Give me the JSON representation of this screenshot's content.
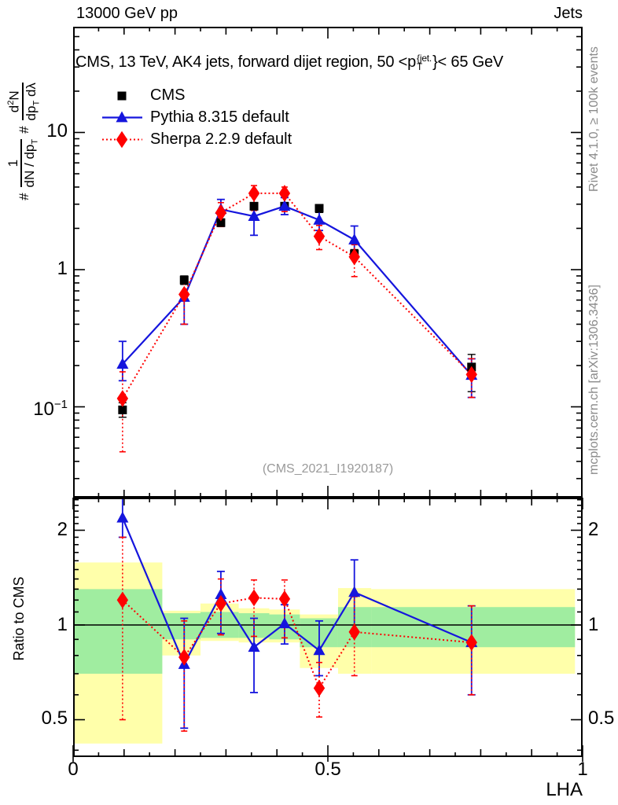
{
  "header": {
    "left": "13000 GeV pp",
    "right": "Jets"
  },
  "title": {
    "text": "CMS, 13 TeV, AK4 jets, forward dijet region, 50 <p",
    "sup": "{jet.",
    "sub": "T",
    "suffix": "}< 65 GeV"
  },
  "ylabel": {
    "hash1": "#",
    "frac1_num": "1",
    "frac1_den": "dN / dp",
    "frac1_den_sub": "T",
    "hash2": "#",
    "frac2_num_base": "d",
    "frac2_num_exp": "2",
    "frac2_num_tail": "N",
    "frac2_den_a": "dp",
    "frac2_den_a_sub": "T",
    "frac2_den_b": " dλ"
  },
  "ratio_ylabel": "Ratio to CMS",
  "xlabel": "LHA",
  "watermark": "(CMS_2021_I1920187)",
  "side_notes": {
    "top": "Rivet 4.1.0, ≥ 100k events",
    "bottom": "mcplots.cern.ch [arXiv:1306.3436]"
  },
  "legend": [
    {
      "label": "CMS",
      "marker": "square",
      "color": "#000000",
      "line": "none"
    },
    {
      "label": "Pythia 8.315 default",
      "marker": "triangle",
      "color": "#1515dd",
      "line": "solid"
    },
    {
      "label": "Sherpa 2.2.9 default",
      "marker": "diamond",
      "color": "#ff0000",
      "line": "dotted"
    }
  ],
  "ticks": {
    "main_y": [
      {
        "text": "10"
      },
      {
        "text": "1"
      },
      {
        "text": "10",
        "sup": "−1"
      }
    ],
    "ratio_y": [
      "2",
      "1",
      "0.5"
    ],
    "x": [
      "0",
      "0.5",
      "1"
    ]
  },
  "colors": {
    "cms": "#000000",
    "pythia": "#1515dd",
    "sherpa": "#ff0000",
    "band_outer": "#ffffaa",
    "band_inner": "#a0eda0",
    "frame": "#000000",
    "note_gray": "#8a8a8a",
    "watermark_gray": "#9a9a9a"
  },
  "chart_data": {
    "type": "scatter",
    "title": "CMS, 13 TeV, AK4 jets, forward dijet region, 50 < pT(jet) < 65 GeV",
    "xlabel": "LHA",
    "ylabel": "1/(dN/dpT) d2N/(dpT dlambda)",
    "xlim": [
      0,
      1
    ],
    "x_values": [
      0.097,
      0.218,
      0.29,
      0.355,
      0.415,
      0.483,
      0.552,
      0.782
    ],
    "main": {
      "ylog": true,
      "ylim": [
        0.0218,
        59
      ],
      "y_ticks_labeled": [
        10,
        1,
        0.1
      ],
      "series": [
        {
          "name": "CMS",
          "y": [
            0.095,
            0.84,
            2.2,
            2.9,
            2.9,
            2.8,
            1.3,
            0.195
          ],
          "err_lo": [
            0.084,
            0.78,
            2.07,
            2.74,
            2.74,
            2.61,
            1.2,
            0.129
          ],
          "err_hi": [
            0.107,
            0.9,
            2.34,
            3.07,
            3.07,
            2.97,
            1.4,
            0.241
          ]
        },
        {
          "name": "Pythia 8.315 default",
          "y": [
            0.205,
            0.63,
            2.75,
            2.45,
            2.9,
            2.3,
            1.65,
            0.17
          ],
          "err_lo": [
            0.155,
            0.4,
            2.07,
            1.78,
            2.52,
            1.93,
            1.23,
            0.117
          ],
          "err_hi": [
            0.3,
            0.67,
            3.25,
            3.05,
            3.35,
            2.88,
            2.08,
            0.224
          ]
        },
        {
          "name": "Sherpa 2.2.9 default",
          "y": [
            0.115,
            0.66,
            2.6,
            3.6,
            3.6,
            1.75,
            1.24,
            0.172
          ],
          "err_lo": [
            0.047,
            0.4,
            2.06,
            2.7,
            2.65,
            1.4,
            0.89,
            0.117
          ],
          "err_hi": [
            0.18,
            0.86,
            3.08,
            4.1,
            4.0,
            2.1,
            1.52,
            0.224
          ]
        }
      ]
    },
    "ratio": {
      "ylog": true,
      "ylim": [
        0.38,
        2.54
      ],
      "reference": 1,
      "y_ticks_labeled": [
        2,
        1,
        0.5
      ],
      "series": [
        {
          "name": "Pythia 8.315 default",
          "y": [
            2.19,
            0.75,
            1.25,
            0.85,
            1.01,
            0.83,
            1.27,
            0.88
          ],
          "err_lo": [
            1.9,
            0.47,
            0.94,
            0.61,
            0.87,
            0.69,
            0.95,
            0.6
          ],
          "err_hi": [
            2.6,
            1.05,
            1.48,
            1.05,
            1.16,
            1.03,
            1.61,
            1.15
          ]
        },
        {
          "name": "Sherpa 2.2.9 default",
          "y": [
            1.2,
            0.79,
            1.17,
            1.22,
            1.21,
            0.63,
            0.95,
            0.88
          ],
          "err_lo": [
            0.5,
            0.46,
            0.93,
            0.92,
            0.91,
            0.51,
            0.69,
            0.6
          ],
          "err_hi": [
            1.9,
            1.03,
            1.4,
            1.39,
            1.39,
            0.76,
            1.23,
            1.15
          ]
        }
      ],
      "bands": {
        "edges": [
          0,
          0.175,
          0.25,
          0.325,
          0.385,
          0.445,
          0.52,
          0.585,
          0.985
        ],
        "outer": [
          [
            0.42,
            1.58
          ],
          [
            0.8,
            1.11
          ],
          [
            0.89,
            1.17
          ],
          [
            0.88,
            1.13
          ],
          [
            0.88,
            1.12
          ],
          [
            0.73,
            1.08
          ],
          [
            0.7,
            1.31
          ],
          [
            0.7,
            1.3
          ]
        ],
        "inner": [
          [
            0.7,
            1.3
          ],
          [
            0.9,
            1.09
          ],
          [
            0.91,
            1.1
          ],
          [
            0.91,
            1.09
          ],
          [
            0.9,
            1.08
          ],
          [
            0.85,
            1.05
          ],
          [
            0.85,
            1.14
          ],
          [
            0.85,
            1.14
          ]
        ]
      }
    }
  }
}
